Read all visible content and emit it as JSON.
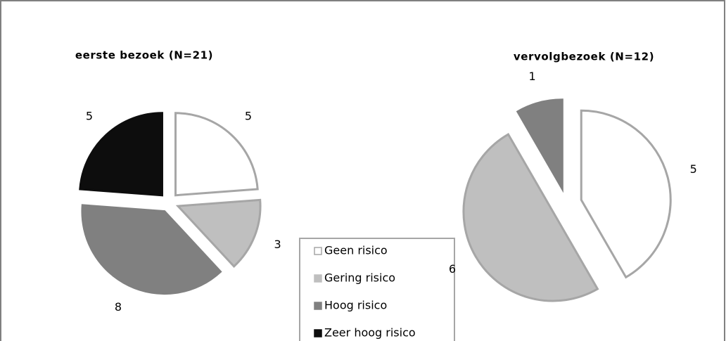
{
  "chart_data": [
    {
      "type": "pie",
      "title": "eerste bezoek (N=21)",
      "categories": [
        "Geen risico",
        "Gering risico",
        "Hoog risico",
        "Zeer hoog risico"
      ],
      "values": [
        5,
        3,
        8,
        5
      ],
      "colors": [
        "#ffffff",
        "#bfbfbf",
        "#808080",
        "#0d0d0d"
      ],
      "legend": "bottom-center"
    },
    {
      "type": "pie",
      "title": "vervolgbezoek (N=12)",
      "values": [
        5,
        6,
        1
      ],
      "colors": [
        "#ffffff",
        "#bfbfbf",
        "#808080"
      ]
    }
  ]
}
